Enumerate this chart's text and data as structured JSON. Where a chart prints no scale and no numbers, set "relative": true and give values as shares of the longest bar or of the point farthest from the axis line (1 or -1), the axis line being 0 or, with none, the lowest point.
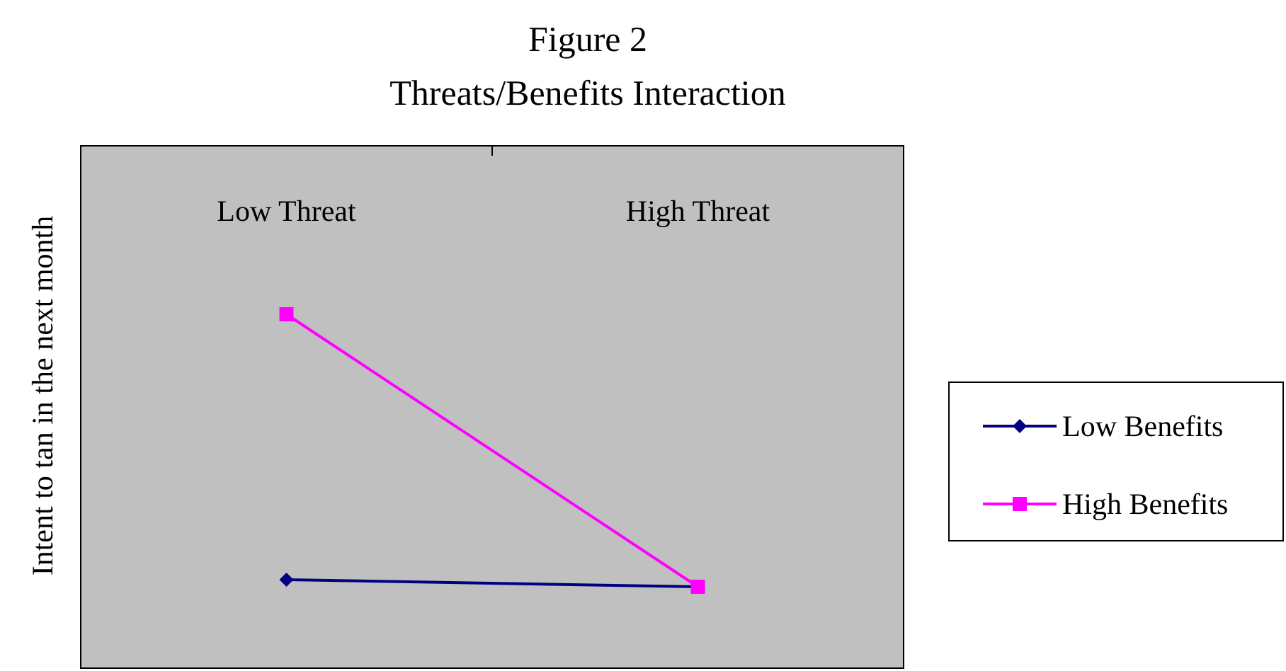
{
  "chart_data": {
    "type": "line",
    "title": "Figure 2",
    "subtitle": "Threats/Benefits Interaction",
    "ylabel": "Intent to tan in the next month",
    "categories": [
      "Low Threat",
      "High Threat"
    ],
    "relative": true,
    "legend": "right",
    "series": [
      {
        "name": "Low Benefits",
        "color": "#000080",
        "values": [
          0.25,
          0.23
        ],
        "marker": "diamond"
      },
      {
        "name": "High Benefits",
        "color": "#ff00ff",
        "values": [
          1,
          0.23
        ],
        "marker": "square"
      }
    ]
  }
}
